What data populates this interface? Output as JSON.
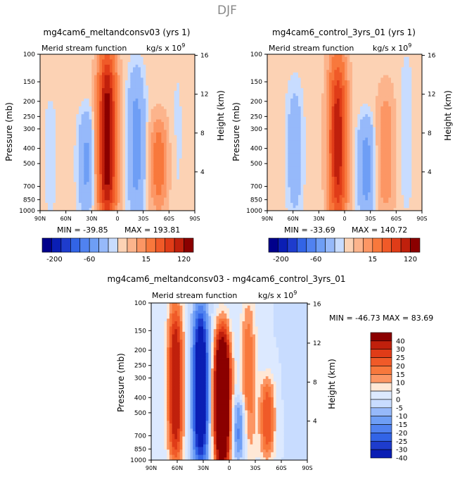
{
  "figure_title": "DJF",
  "chart_data": [
    {
      "type": "heatmap",
      "title": "mg4cam6_meltandconsv03 (yrs 1)",
      "subtitle_left": "Merid stream function",
      "units_label": "kg/s x 10",
      "units_exponent": "9",
      "ylabel": "Pressure (mb)",
      "ylabel_right": "Height (km)",
      "x_ticks": [
        "90N",
        "60N",
        "30N",
        "0",
        "30S",
        "60S",
        "90S"
      ],
      "y_ticks": [
        "100",
        "150",
        "200",
        "250",
        "300",
        "400",
        "500",
        "700",
        "850",
        "1000"
      ],
      "y_ticks_right": [
        "16",
        "12",
        "8",
        "4"
      ],
      "stats": {
        "min_label": "MIN = -39.85",
        "max_label": "MAX = 193.81",
        "min": -39.85,
        "max": 193.81
      },
      "colorbar_labels": [
        "-200",
        "-60",
        "15",
        "120"
      ],
      "features": [
        {
          "lat": 36,
          "p_top": 270,
          "p_bot": 900,
          "value": -25
        },
        {
          "lat": 12,
          "p_top": 120,
          "p_bot": 1000,
          "value": 193.81
        },
        {
          "lat": -22,
          "p_top": 150,
          "p_bot": 950,
          "value": -30
        },
        {
          "lat": -48,
          "p_top": 300,
          "p_bot": 850,
          "value": 40
        },
        {
          "lat": 78,
          "p_top": 200,
          "p_bot": 1000,
          "value": -5
        },
        {
          "lat": -70,
          "p_top": 100,
          "p_bot": 1000,
          "value": -3
        }
      ]
    },
    {
      "type": "heatmap",
      "title": "mg4cam6_control_3yrs_01 (yrs 1)",
      "subtitle_left": "Merid stream function",
      "units_label": "kg/s x 10",
      "units_exponent": "9",
      "ylabel": "Pressure (mb)",
      "ylabel_right": "Height (km)",
      "x_ticks": [
        "90N",
        "60N",
        "30N",
        "0",
        "30S",
        "60S",
        "90S"
      ],
      "y_ticks": [
        "100",
        "150",
        "200",
        "250",
        "300",
        "400",
        "500",
        "700",
        "850",
        "1000"
      ],
      "y_ticks_right": [
        "16",
        "12",
        "8",
        "4"
      ],
      "stats": {
        "min_label": "MIN = -33.69",
        "max_label": "MAX = 140.72",
        "min": -33.69,
        "max": 140.72
      },
      "colorbar_labels": [
        "-200",
        "-60",
        "15",
        "120"
      ],
      "features": [
        {
          "lat": 58,
          "p_top": 180,
          "p_bot": 950,
          "value": -15
        },
        {
          "lat": 8,
          "p_top": 130,
          "p_bot": 1000,
          "value": 140.72
        },
        {
          "lat": -25,
          "p_top": 300,
          "p_bot": 950,
          "value": -30
        },
        {
          "lat": -48,
          "p_top": 200,
          "p_bot": 900,
          "value": 25
        },
        {
          "lat": -72,
          "p_top": 100,
          "p_bot": 1000,
          "value": -5
        }
      ]
    },
    {
      "type": "heatmap",
      "title": "mg4cam6_meltandconsv03 - mg4cam6_control_3yrs_01",
      "subtitle_left": "Merid stream function",
      "units_label": "kg/s x 10",
      "units_exponent": "9",
      "ylabel": "Pressure (mb)",
      "ylabel_right": "Height (km)",
      "x_ticks": [
        "90N",
        "60N",
        "30N",
        "0",
        "30S",
        "60S",
        "90S"
      ],
      "y_ticks": [
        "100",
        "150",
        "200",
        "250",
        "300",
        "400",
        "500",
        "700",
        "850",
        "1000"
      ],
      "y_ticks_right": [
        "16",
        "12",
        "8",
        "4"
      ],
      "stats": {
        "min_label": "MIN = -46.73",
        "max_label": "MAX =  83.69",
        "min": -46.73,
        "max": 83.69
      },
      "colorbar_labels": [
        "40",
        "30",
        "25",
        "20",
        "15",
        "10",
        "5",
        "0",
        "-5",
        "-10",
        "-15",
        "-20",
        "-25",
        "-30",
        "-40"
      ],
      "features": [
        {
          "lat": 62,
          "p_top": 110,
          "p_bot": 1000,
          "value": 40
        },
        {
          "lat": 33,
          "p_top": 120,
          "p_bot": 1000,
          "value": -46.73
        },
        {
          "lat": 8,
          "p_top": 170,
          "p_bot": 1000,
          "value": 83.69
        },
        {
          "lat": -12,
          "p_top": 450,
          "p_bot": 900,
          "value": -20
        },
        {
          "lat": -22,
          "p_top": 100,
          "p_bot": 1000,
          "value": 20
        },
        {
          "lat": -44,
          "p_top": 330,
          "p_bot": 900,
          "value": 25
        },
        {
          "lat": -75,
          "p_top": 100,
          "p_bot": 1000,
          "value": -5
        }
      ]
    }
  ],
  "colors": {
    "neg": [
      "#00008b",
      "#0a1eb4",
      "#1e3ccd",
      "#3264e6",
      "#5082f0",
      "#6e9ef5",
      "#96b9fa",
      "#c8dcff"
    ],
    "zero_neg": "#dce9ff",
    "zero_pos": "#ffe8d6",
    "pos": [
      "#fcd2b4",
      "#fcb48c",
      "#fc9664",
      "#f8783c",
      "#f05a28",
      "#e03c18",
      "#c0200c",
      "#8b0000"
    ]
  }
}
